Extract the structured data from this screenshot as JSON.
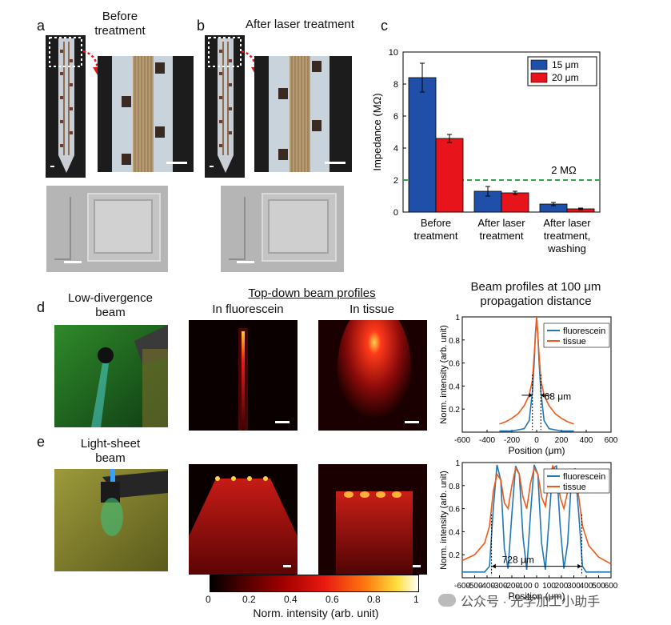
{
  "panels": {
    "a": {
      "letter": "a",
      "title": "Before\ntreatment"
    },
    "b": {
      "letter": "b",
      "title": "After laser treatment"
    },
    "c": {
      "letter": "c"
    },
    "d": {
      "letter": "d",
      "title": "Low-divergence\nbeam"
    },
    "e": {
      "letter": "e",
      "title": "Light-sheet\nbeam"
    }
  },
  "beam_header": {
    "title": "Top-down beam profiles",
    "col_fluor": "In fluorescein",
    "col_tissue": "In tissue",
    "right_title": "Beam profiles at 100 μm\npropagation distance"
  },
  "colorbar": {
    "ticks": [
      "0",
      "0.2",
      "0.4",
      "0.6",
      "0.8",
      "1"
    ],
    "label": "Norm. intensity (arb. unit)"
  },
  "watermark": "公众号 · 光学加工小助手",
  "chart_data": [
    {
      "type": "bar",
      "ylabel": "Impedance (MΩ)",
      "ylim": [
        0,
        10
      ],
      "yticks": [
        0,
        2,
        4,
        6,
        8,
        10
      ],
      "categories": [
        "Before\ntreatment",
        "After laser\ntreatment",
        "After laser\ntreatment,\nwashing"
      ],
      "series": [
        {
          "name": "15 μm",
          "color": "#1f4fa8",
          "values": [
            8.4,
            1.3,
            0.5
          ],
          "errors": [
            0.9,
            0.3,
            0.1
          ]
        },
        {
          "name": "20 μm",
          "color": "#e8141b",
          "values": [
            4.6,
            1.2,
            0.2
          ],
          "errors": [
            0.25,
            0.1,
            0.05
          ]
        }
      ],
      "reference_line": {
        "y": 2,
        "label": "2 MΩ",
        "color": "#2aa84a"
      },
      "legend": "top-right"
    },
    {
      "type": "line",
      "xlabel": "Position (μm)",
      "ylabel": "Norm. intensity (arb. unit)",
      "xlim": [
        -600,
        600
      ],
      "ylim": [
        0,
        1
      ],
      "xticks": [
        -600,
        -400,
        -200,
        0,
        200,
        400,
        600
      ],
      "yticks": [
        0.2,
        0.4,
        0.6,
        0.8,
        1
      ],
      "annotation": "68 μm",
      "series": [
        {
          "name": "fluorescein",
          "color": "#1f77b4",
          "x": [
            -300,
            -200,
            -100,
            -60,
            -34,
            -20,
            -10,
            0,
            10,
            20,
            34,
            60,
            100,
            200,
            300
          ],
          "y": [
            0.01,
            0.01,
            0.03,
            0.1,
            0.35,
            0.6,
            0.85,
            1.0,
            0.85,
            0.6,
            0.35,
            0.1,
            0.03,
            0.01,
            0.01
          ]
        },
        {
          "name": "tissue",
          "color": "#f05a1a",
          "x": [
            -300,
            -250,
            -200,
            -150,
            -100,
            -60,
            -34,
            -15,
            0,
            15,
            34,
            60,
            100,
            150,
            200,
            250,
            300
          ],
          "y": [
            0.07,
            0.09,
            0.12,
            0.16,
            0.23,
            0.32,
            0.45,
            0.75,
            1.0,
            0.75,
            0.45,
            0.32,
            0.23,
            0.16,
            0.12,
            0.09,
            0.07
          ]
        }
      ],
      "legend": "top-right"
    },
    {
      "type": "line",
      "xlabel": "Position (μm)",
      "ylabel": "Norm. intensity (arb. unit)",
      "xlim": [
        -600,
        600
      ],
      "ylim": [
        0,
        1
      ],
      "xticks": [
        -600,
        -500,
        -400,
        -300,
        -200,
        -100,
        0,
        100,
        200,
        300,
        400,
        500,
        600
      ],
      "yticks": [
        0.2,
        0.4,
        0.6,
        0.8,
        1
      ],
      "annotation": "728 μm",
      "series": [
        {
          "name": "fluorescein",
          "color": "#1f77b4",
          "x": [
            -600,
            -420,
            -380,
            -350,
            -320,
            -290,
            -260,
            -230,
            -200,
            -170,
            -140,
            -110,
            -80,
            -50,
            -20,
            10,
            40,
            70,
            100,
            130,
            160,
            190,
            220,
            250,
            280,
            310,
            340,
            370,
            400,
            600
          ],
          "y": [
            0.05,
            0.05,
            0.1,
            0.6,
            0.98,
            0.85,
            0.25,
            0.08,
            0.55,
            0.97,
            0.9,
            0.35,
            0.07,
            0.55,
            0.98,
            0.9,
            0.3,
            0.07,
            0.5,
            0.95,
            0.97,
            0.45,
            0.08,
            0.3,
            0.85,
            0.95,
            0.55,
            0.1,
            0.05,
            0.05
          ]
        },
        {
          "name": "tissue",
          "color": "#f05a1a",
          "x": [
            -600,
            -500,
            -420,
            -380,
            -350,
            -320,
            -290,
            -260,
            -230,
            -200,
            -170,
            -140,
            -110,
            -80,
            -50,
            -20,
            10,
            40,
            70,
            100,
            130,
            160,
            190,
            220,
            250,
            280,
            310,
            340,
            370,
            420,
            500,
            600
          ],
          "y": [
            0.15,
            0.2,
            0.3,
            0.45,
            0.75,
            0.9,
            0.85,
            0.65,
            0.6,
            0.8,
            0.95,
            0.9,
            0.7,
            0.6,
            0.82,
            0.95,
            0.9,
            0.7,
            0.62,
            0.85,
            0.97,
            0.92,
            0.7,
            0.6,
            0.75,
            0.92,
            0.9,
            0.7,
            0.45,
            0.28,
            0.18,
            0.12
          ]
        }
      ],
      "legend": "top-right"
    }
  ]
}
